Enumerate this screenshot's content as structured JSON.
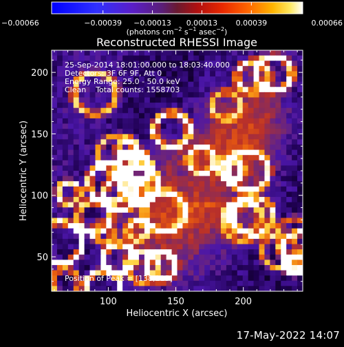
{
  "colorbar": {
    "tick_labels": [
      "−0.00066",
      "−0.00039",
      "−0.00013",
      "0.00013",
      "0.00039",
      "0.00066"
    ],
    "tick_values": [
      -0.00066,
      -0.00039,
      -0.00013,
      0.00013,
      0.00039,
      0.00066
    ],
    "range": [
      -0.00066,
      0.00066
    ],
    "units_prefix": "(photons cm",
    "units_sup1": "−2",
    "units_mid": " s",
    "units_sup2": "−1",
    "units_mid2": " asec",
    "units_sup3": "−2",
    "units_suffix": ")"
  },
  "plot": {
    "title": "Reconstructed RHESSI Image",
    "xlabel": "Heliocentric X (arcsec)",
    "ylabel": "Heliocentric Y (arcsec)",
    "xlim": [
      58,
      244
    ],
    "ylim": [
      22,
      218
    ],
    "x_ticks": [
      100,
      150,
      200
    ],
    "y_ticks": [
      50,
      100,
      150,
      200
    ],
    "x_tick_labels": [
      "100",
      "150",
      "200"
    ],
    "y_tick_labels": [
      "50",
      "100",
      "150",
      "200"
    ]
  },
  "annotations": {
    "line1": "25-Sep-2014 18:01:00.000 to 18:03:40.000",
    "line2": "Detectors: 3F 6F 9F, Att 0",
    "line3": "Energy Range: 25.0 - 50.0 keV",
    "line4": "Clean    Total counts: 1558703",
    "peak": "Position of Peak = [138,215]"
  },
  "footer": {
    "timestamp": "17-May-2022 14:07"
  },
  "colors": {
    "colormap": [
      "#000000",
      "#1e0050",
      "#4b16a8",
      "#7a2a6a",
      "#b8302a",
      "#e85a10",
      "#f89a18",
      "#ffd848",
      "#ffffff"
    ],
    "axes": "#ffffff",
    "background": "#000000"
  }
}
